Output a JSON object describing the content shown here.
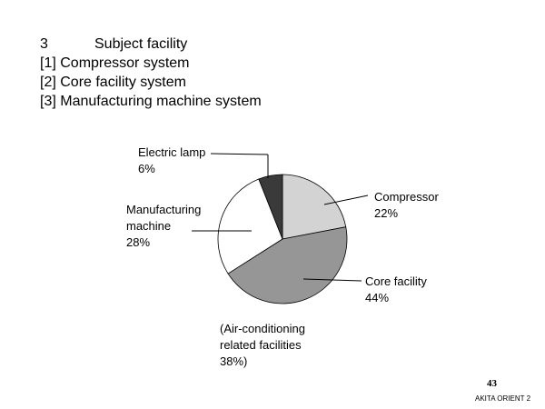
{
  "heading": {
    "number": "3",
    "title": "Subject facility",
    "items": [
      "[1] Compressor system",
      "[2] Core facility system",
      "[3] Manufacturing machine system"
    ]
  },
  "chart_data": {
    "type": "pie",
    "title": "",
    "slices": [
      {
        "label": "Compressor",
        "value": 22,
        "value_label": "22%",
        "color": "#d3d3d3"
      },
      {
        "label": "Core facility",
        "value": 44,
        "value_label": "44%",
        "color": "#969696"
      },
      {
        "label": "Manufacturing machine",
        "value": 28,
        "value_label": "28%",
        "color": "#ffffff"
      },
      {
        "label": "Electric lamp",
        "value": 6,
        "value_label": "6%",
        "color": "#3a3a3a"
      }
    ],
    "annotation": "(Air-conditioning related facilities 38%)",
    "annotation_lines": [
      "(Air-conditioning",
      "related facilities",
      "38%)"
    ],
    "start": "12 o'clock",
    "direction": "clockwise",
    "legend": "none"
  },
  "labels": {
    "compressor": [
      "Compressor",
      "22%"
    ],
    "core_facility": [
      "Core facility",
      "44%"
    ],
    "manufacturing": [
      "Manufacturing",
      "machine",
      "28%"
    ],
    "electric_lamp": [
      "Electric lamp",
      "6%"
    ]
  },
  "page_number": "43",
  "footer": "AKITA ORIENT 2"
}
